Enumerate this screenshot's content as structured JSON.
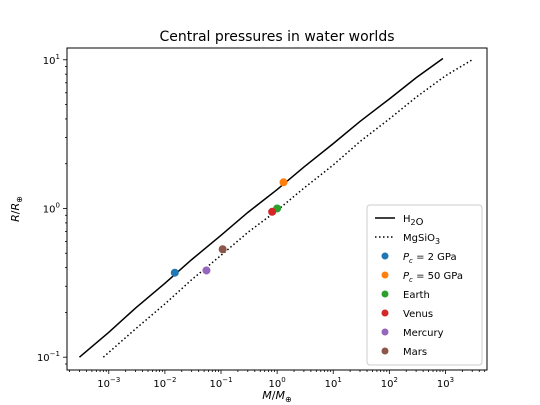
{
  "chart_data": {
    "type": "line",
    "title": "Central pressures in water worlds",
    "xlabel": "M/M⊕",
    "ylabel": "R/R⊕",
    "xscale": "log",
    "yscale": "log",
    "xlim": [
      0.00018,
      5500
    ],
    "ylim": [
      0.082,
      12
    ],
    "xticks": [
      {
        "value": 0.001,
        "base": "10",
        "exp": "−3"
      },
      {
        "value": 0.01,
        "base": "10",
        "exp": "−2"
      },
      {
        "value": 0.1,
        "base": "10",
        "exp": "−1"
      },
      {
        "value": 1,
        "base": "10",
        "exp": "0"
      },
      {
        "value": 10,
        "base": "10",
        "exp": "1"
      },
      {
        "value": 100,
        "base": "10",
        "exp": "2"
      },
      {
        "value": 1000,
        "base": "10",
        "exp": "3"
      }
    ],
    "yticks": [
      {
        "value": 0.1,
        "base": "10",
        "exp": "−1"
      },
      {
        "value": 1,
        "base": "10",
        "exp": "0"
      },
      {
        "value": 10,
        "base": "10",
        "exp": "1"
      }
    ],
    "grid": false,
    "legend_position": "lower right",
    "series": [
      {
        "name": "H₂O",
        "style": "solid",
        "color": "#000000",
        "x": [
          0.0003,
          0.001,
          0.003,
          0.01,
          0.03,
          0.1,
          0.3,
          1,
          3,
          10,
          30,
          100,
          300,
          900
        ],
        "y": [
          0.1,
          0.147,
          0.214,
          0.314,
          0.453,
          0.66,
          0.94,
          1.34,
          1.9,
          2.73,
          3.85,
          5.45,
          7.57,
          10.2
        ]
      },
      {
        "name": "MgSiO₃",
        "style": "dotted",
        "color": "#000000",
        "x": [
          0.0008,
          0.003,
          0.01,
          0.03,
          0.1,
          0.3,
          1,
          3,
          10,
          30,
          100,
          300,
          1000,
          3000
        ],
        "y": [
          0.1,
          0.155,
          0.228,
          0.332,
          0.484,
          0.69,
          0.97,
          1.37,
          1.96,
          2.82,
          4.0,
          5.6,
          7.8,
          10.0
        ]
      }
    ],
    "points": [
      {
        "label": "Pc = 2 GPa",
        "label_prefix": "P",
        "label_sub": "c",
        "label_suffix": " = 2 GPa",
        "x": 0.015,
        "y": 0.37,
        "color": "#1f77b4"
      },
      {
        "label": "Pc = 50 GPa",
        "label_prefix": "P",
        "label_sub": "c",
        "label_suffix": " = 50 GPa",
        "x": 1.3,
        "y": 1.5,
        "color": "#ff7f0e"
      },
      {
        "label": "Earth",
        "x": 1.0,
        "y": 1.0,
        "color": "#2ca02c"
      },
      {
        "label": "Venus",
        "x": 0.815,
        "y": 0.95,
        "color": "#d62728"
      },
      {
        "label": "Mercury",
        "x": 0.055,
        "y": 0.383,
        "color": "#9467bd"
      },
      {
        "label": "Mars",
        "x": 0.107,
        "y": 0.532,
        "color": "#8c564b"
      }
    ]
  }
}
